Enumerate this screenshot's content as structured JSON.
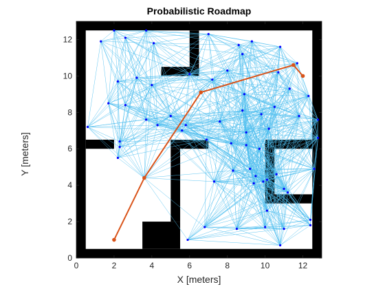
{
  "chart_data": {
    "type": "scatter",
    "title": "Probabilistic Roadmap",
    "xlabel": "X [meters]",
    "ylabel": "Y [meters]",
    "xlim": [
      0,
      13
    ],
    "ylim": [
      0,
      13
    ],
    "xticks": [
      0,
      2,
      4,
      6,
      8,
      10,
      12
    ],
    "yticks": [
      0,
      2,
      4,
      6,
      8,
      10,
      12
    ],
    "grid": false,
    "legend": "none",
    "colors": {
      "obstacle": "#000000",
      "edge": "#4DBEEE",
      "node": "#0000FF",
      "path": "#D95319",
      "axis": "#262626"
    },
    "obstacles": [
      [
        0,
        0,
        13,
        0.5
      ],
      [
        0,
        12.5,
        13,
        13
      ],
      [
        0,
        0,
        0.5,
        13
      ],
      [
        12.5,
        0,
        13,
        13
      ],
      [
        0.5,
        6.0,
        2.0,
        6.5
      ],
      [
        4.5,
        10.0,
        6.5,
        10.5
      ],
      [
        6.0,
        10.5,
        6.5,
        12.5
      ],
      [
        3.5,
        0.5,
        5.5,
        2.0
      ],
      [
        5.0,
        2.0,
        5.5,
        6.0
      ],
      [
        5.0,
        6.0,
        7.0,
        6.5
      ],
      [
        10.0,
        6.0,
        12.5,
        6.5
      ],
      [
        10.0,
        3.0,
        10.5,
        6.5
      ],
      [
        10.5,
        3.0,
        12.5,
        3.5
      ]
    ],
    "nodes": [
      [
        1.3,
        11.9
      ],
      [
        2.0,
        12.5
      ],
      [
        2.6,
        12.1
      ],
      [
        3.7,
        12.5
      ],
      [
        4.1,
        11.8
      ],
      [
        6.0,
        10.1
      ],
      [
        2.2,
        9.7
      ],
      [
        3.2,
        9.9
      ],
      [
        4.0,
        9.5
      ],
      [
        1.7,
        8.5
      ],
      [
        2.6,
        8.4
      ],
      [
        3.7,
        7.6
      ],
      [
        4.3,
        7.3
      ],
      [
        0.6,
        7.2
      ],
      [
        2.3,
        6.4
      ],
      [
        2.3,
        6.1
      ],
      [
        2.2,
        5.5
      ],
      [
        3.6,
        4.4
      ],
      [
        5.0,
        7.8
      ],
      [
        5.8,
        7.3
      ],
      [
        5.6,
        7.0
      ],
      [
        7.0,
        12.3
      ],
      [
        8.6,
        11.7
      ],
      [
        9.3,
        11.9
      ],
      [
        8.8,
        11.2
      ],
      [
        10.8,
        11.6
      ],
      [
        11.7,
        10.7
      ],
      [
        8.0,
        10.3
      ],
      [
        10.7,
        10.2
      ],
      [
        7.2,
        9.8
      ],
      [
        11.3,
        9.3
      ],
      [
        8.9,
        9.0
      ],
      [
        12.3,
        8.9
      ],
      [
        8.8,
        8.1
      ],
      [
        10.5,
        8.3
      ],
      [
        11.8,
        7.8
      ],
      [
        12.8,
        7.6
      ],
      [
        9.8,
        7.9
      ],
      [
        7.6,
        7.5
      ],
      [
        10.2,
        7.1
      ],
      [
        9.0,
        6.9
      ],
      [
        12.8,
        6.6
      ],
      [
        8.2,
        6.3
      ],
      [
        9.0,
        6.2
      ],
      [
        9.7,
        6.0
      ],
      [
        6.9,
        6.5
      ],
      [
        7.3,
        4.2
      ],
      [
        8.3,
        4.8
      ],
      [
        9.2,
        4.9
      ],
      [
        9.5,
        4.5
      ],
      [
        9.4,
        4.1
      ],
      [
        9.9,
        4.2
      ],
      [
        10.6,
        4.6
      ],
      [
        10.1,
        4.3
      ],
      [
        11.0,
        3.8
      ],
      [
        11.2,
        3.6
      ],
      [
        12.6,
        4.9
      ],
      [
        10.1,
        2.6
      ],
      [
        12.4,
        2.1
      ],
      [
        12.4,
        1.8
      ],
      [
        10.0,
        1.7
      ],
      [
        8.5,
        1.6
      ],
      [
        6.8,
        1.7
      ],
      [
        5.9,
        1.0
      ],
      [
        10.8,
        0.7
      ],
      [
        11.0,
        1.6
      ]
    ],
    "path": [
      [
        2.0,
        1.0
      ],
      [
        3.6,
        4.4
      ],
      [
        6.6,
        9.1
      ],
      [
        11.5,
        10.6
      ],
      [
        12.0,
        10.0
      ]
    ]
  }
}
